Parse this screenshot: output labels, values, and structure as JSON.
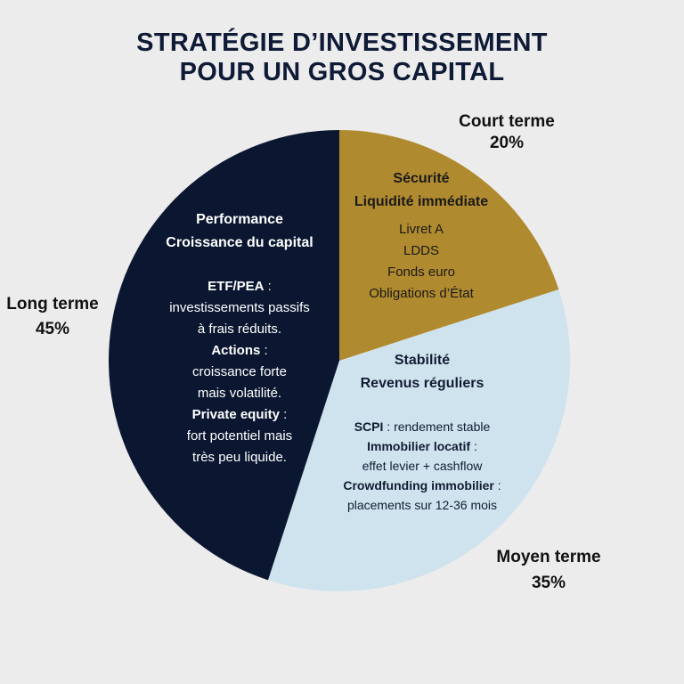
{
  "title_line1": "STRATÉGIE D’INVESTISSEMENT",
  "title_line2": "POUR UN GROS CAPITAL",
  "chart_data": {
    "type": "pie",
    "title": "STRATÉGIE D’INVESTISSEMENT POUR UN GROS CAPITAL",
    "slices": [
      {
        "label": "Court terme",
        "percent_text": "20%",
        "value": 20,
        "color": "#b08a2e",
        "heading1": "Sécurité",
        "heading2": "Liquidité immédiate",
        "items": [
          "Livret A",
          "LDDS",
          "Fonds euro",
          "Obligations d’État"
        ]
      },
      {
        "label": "Moyen terme",
        "percent_text": "35%",
        "value": 35,
        "color": "#cfe3ee",
        "heading1": "Stabilité",
        "heading2": "Revenus réguliers",
        "entries": [
          {
            "name": "SCPI",
            "text": " : rendement stable"
          },
          {
            "name": "Immobilier locatif",
            "text": " :"
          },
          {
            "name": "",
            "text": "effet levier + cashflow"
          },
          {
            "name": "Crowdfunding immobilier",
            "text": " :"
          },
          {
            "name": "",
            "text": "placements sur 12-36 mois"
          }
        ]
      },
      {
        "label": "Long terme",
        "percent_text": "45%",
        "value": 45,
        "color": "#0b1731",
        "heading1": "Performance",
        "heading2": "Croissance du capital",
        "entries": [
          {
            "name": "ETF/PEA",
            "text": " :"
          },
          {
            "name": "",
            "text": "investissements passifs"
          },
          {
            "name": "",
            "text": "à frais réduits."
          },
          {
            "name": "Actions",
            "text": " :"
          },
          {
            "name": "",
            "text": "croissance forte"
          },
          {
            "name": "",
            "text": "mais volatilité."
          },
          {
            "name": "Private equity",
            "text": " :"
          },
          {
            "name": "",
            "text": "fort potentiel mais"
          },
          {
            "name": "",
            "text": "très peu liquide."
          }
        ]
      }
    ]
  }
}
